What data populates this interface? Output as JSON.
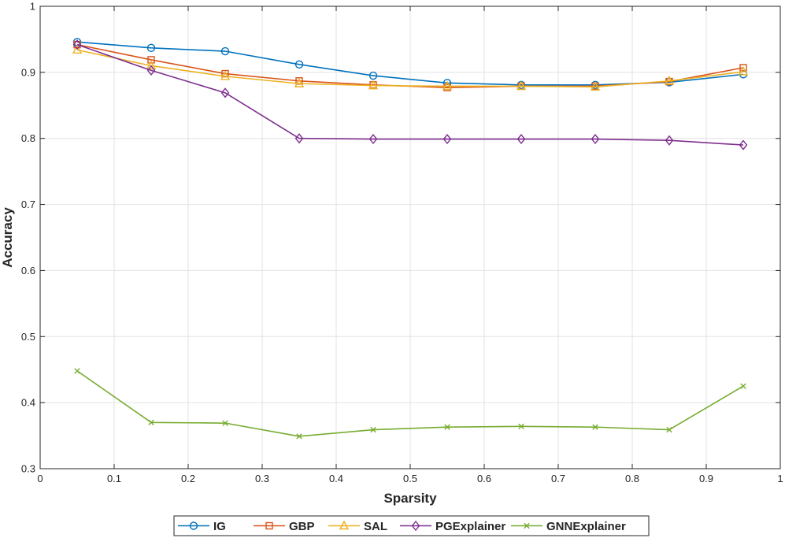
{
  "chart_data": {
    "type": "line",
    "xlabel": "Sparsity",
    "ylabel": "Accuracy",
    "xlim": [
      0,
      1
    ],
    "ylim": [
      0.3,
      1
    ],
    "xticks": [
      0,
      0.1,
      0.2,
      0.3,
      0.4,
      0.5,
      0.6,
      0.7,
      0.8,
      0.9,
      1
    ],
    "yticks": [
      0.3,
      0.4,
      0.5,
      0.6,
      0.7,
      0.8,
      0.9,
      1
    ],
    "xtick_labels": [
      "0",
      "0.1",
      "0.2",
      "0.3",
      "0.4",
      "0.5",
      "0.6",
      "0.7",
      "0.8",
      "0.9",
      "1"
    ],
    "ytick_labels": [
      "0.3",
      "0.4",
      "0.5",
      "0.6",
      "0.7",
      "0.8",
      "0.9",
      "1"
    ],
    "grid": true,
    "legend_position": "bottom",
    "x": [
      0.05,
      0.15,
      0.25,
      0.35,
      0.45,
      0.55,
      0.65,
      0.75,
      0.85,
      0.95
    ],
    "series": [
      {
        "name": "IG",
        "color": "#0072BD",
        "marker": "circle",
        "values": [
          0.946,
          0.937,
          0.932,
          0.912,
          0.895,
          0.884,
          0.881,
          0.881,
          0.885,
          0.897
        ]
      },
      {
        "name": "GBP",
        "color": "#D95319",
        "marker": "square",
        "values": [
          0.942,
          0.919,
          0.898,
          0.887,
          0.881,
          0.877,
          0.879,
          0.879,
          0.886,
          0.907
        ]
      },
      {
        "name": "SAL",
        "color": "#EDB120",
        "marker": "triangle",
        "values": [
          0.934,
          0.91,
          0.894,
          0.883,
          0.88,
          0.879,
          0.879,
          0.878,
          0.887,
          0.901
        ]
      },
      {
        "name": "PGExplainer",
        "color": "#7E2F8E",
        "marker": "diamond",
        "values": [
          0.942,
          0.903,
          0.869,
          0.8,
          0.799,
          0.799,
          0.799,
          0.799,
          0.797,
          0.79
        ]
      },
      {
        "name": "GNNExplainer",
        "color": "#77AC30",
        "marker": "x",
        "values": [
          0.448,
          0.37,
          0.369,
          0.349,
          0.359,
          0.363,
          0.364,
          0.363,
          0.359,
          0.425
        ]
      }
    ]
  }
}
